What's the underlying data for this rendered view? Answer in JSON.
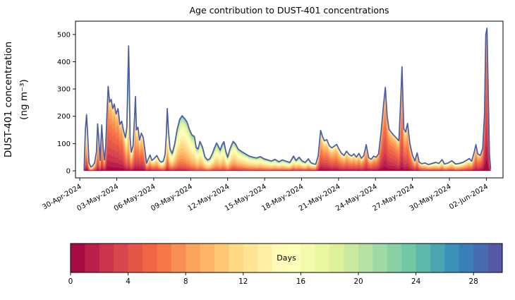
{
  "figure": {
    "title": "Age contribution to DUST-401 concentrations"
  },
  "chart_data": {
    "type": "area",
    "subtype": "stacked-area-by-age",
    "title": "Age contribution to DUST-401 concentrations",
    "xlabel": "",
    "ylabel_line1": "DUST-401 concentration",
    "ylabel_line2": "(ng m⁻³)",
    "x_unit": "days since 30-Apr-2024",
    "x_tick_labels": [
      "30-Apr-2024",
      "03-May-2024",
      "06-May-2024",
      "09-May-2024",
      "12-May-2024",
      "15-May-2024",
      "18-May-2024",
      "21-May-2024",
      "24-May-2024",
      "27-May-2024",
      "30-May-2024",
      "02-Jun-2024"
    ],
    "x_tick_days": [
      0,
      3,
      6,
      9,
      12,
      15,
      18,
      21,
      24,
      27,
      30,
      33
    ],
    "y_ticks": [
      0,
      100,
      200,
      300,
      400,
      500
    ],
    "xlim_days": [
      -0.35,
      34.35
    ],
    "ylim": [
      -26,
      549
    ],
    "grid": false,
    "legend": "none (colorbar encodes age)",
    "age_bands": 30,
    "stack_order": "youngest age (0 days) at bottom, oldest (30 days) at top",
    "envelope_color": "#4b5ba8",
    "colormap_name": "Spectral",
    "colormap_hex": [
      "#9e0142",
      "#d53e4f",
      "#f46d43",
      "#fdae61",
      "#fee08b",
      "#ffffbf",
      "#e6f598",
      "#abdda4",
      "#66c2a5",
      "#3288bd",
      "#5e4fa2"
    ],
    "colorbar": {
      "label": "Days",
      "ticks": [
        0,
        4,
        8,
        12,
        16,
        20,
        24,
        28
      ],
      "range": [
        0,
        30
      ],
      "orientation": "horizontal",
      "discrete_segments": 30
    },
    "points_format": [
      "t_days_since_30Apr2024",
      "total_concentration_ng_m3",
      "mean_age_days",
      "age_spread_days"
    ],
    "points": [
      [
        0.35,
        2,
        12,
        7
      ],
      [
        0.45,
        150,
        10,
        7
      ],
      [
        0.55,
        206,
        10,
        7
      ],
      [
        0.65,
        120,
        10,
        7
      ],
      [
        0.75,
        30,
        10,
        6
      ],
      [
        0.9,
        14,
        10,
        6
      ],
      [
        1.05,
        18,
        9,
        6
      ],
      [
        1.2,
        30,
        9,
        6
      ],
      [
        1.35,
        70,
        8,
        5
      ],
      [
        1.45,
        172,
        8,
        5
      ],
      [
        1.55,
        110,
        8,
        5
      ],
      [
        1.65,
        38,
        8,
        5
      ],
      [
        1.78,
        168,
        7,
        5
      ],
      [
        1.9,
        80,
        7,
        5
      ],
      [
        2.0,
        40,
        6,
        4.5
      ],
      [
        2.1,
        90,
        5.5,
        4
      ],
      [
        2.2,
        200,
        5,
        4
      ],
      [
        2.3,
        310,
        5,
        4
      ],
      [
        2.42,
        252,
        5,
        4
      ],
      [
        2.55,
        262,
        5,
        4
      ],
      [
        2.68,
        228,
        5,
        4
      ],
      [
        2.8,
        245,
        5,
        4
      ],
      [
        2.95,
        208,
        5,
        4
      ],
      [
        3.1,
        228,
        5,
        4
      ],
      [
        3.25,
        170,
        5,
        4
      ],
      [
        3.4,
        182,
        5,
        4
      ],
      [
        3.55,
        148,
        5.5,
        4.5
      ],
      [
        3.7,
        122,
        7,
        5.5
      ],
      [
        3.82,
        160,
        11,
        7
      ],
      [
        3.9,
        330,
        14,
        8
      ],
      [
        3.96,
        458,
        16,
        9
      ],
      [
        4.02,
        330,
        14,
        8
      ],
      [
        4.08,
        120,
        10,
        7
      ],
      [
        4.18,
        68,
        8,
        6
      ],
      [
        4.32,
        92,
        7,
        5
      ],
      [
        4.45,
        200,
        8,
        6
      ],
      [
        4.52,
        272,
        8,
        6
      ],
      [
        4.6,
        150,
        7,
        5
      ],
      [
        4.72,
        160,
        6,
        5
      ],
      [
        4.85,
        112,
        6,
        5
      ],
      [
        5.0,
        138,
        6,
        5
      ],
      [
        5.15,
        122,
        6,
        5
      ],
      [
        5.3,
        70,
        6.5,
        5
      ],
      [
        5.42,
        28,
        7,
        5.5
      ],
      [
        5.55,
        42,
        8,
        6
      ],
      [
        5.7,
        58,
        8,
        6
      ],
      [
        5.85,
        38,
        8,
        6
      ],
      [
        6.05,
        46,
        9,
        6
      ],
      [
        6.25,
        56,
        9,
        6
      ],
      [
        6.45,
        38,
        9.5,
        6
      ],
      [
        6.6,
        32,
        10,
        6
      ],
      [
        6.78,
        36,
        10.5,
        6.5
      ],
      [
        6.92,
        60,
        11.5,
        7
      ],
      [
        7.02,
        130,
        12,
        7
      ],
      [
        7.1,
        228,
        12,
        7
      ],
      [
        7.2,
        145,
        12,
        7
      ],
      [
        7.32,
        82,
        12,
        7
      ],
      [
        7.5,
        64,
        12,
        7
      ],
      [
        7.7,
        98,
        12,
        6.5
      ],
      [
        7.9,
        152,
        12,
        6
      ],
      [
        8.1,
        188,
        12,
        6
      ],
      [
        8.3,
        202,
        12,
        5.5
      ],
      [
        8.5,
        192,
        12,
        5.5
      ],
      [
        8.7,
        180,
        12.5,
        5.5
      ],
      [
        8.9,
        152,
        12.5,
        5.5
      ],
      [
        9.1,
        132,
        13,
        5.5
      ],
      [
        9.3,
        126,
        13,
        5.5
      ],
      [
        9.45,
        86,
        13,
        5.5
      ],
      [
        9.6,
        80,
        13,
        5.5
      ],
      [
        9.75,
        108,
        13,
        5.5
      ],
      [
        9.95,
        88,
        13,
        5.5
      ],
      [
        10.15,
        52,
        13,
        6
      ],
      [
        10.35,
        40,
        13,
        6
      ],
      [
        10.55,
        44,
        13,
        6
      ],
      [
        10.75,
        62,
        13,
        6
      ],
      [
        10.95,
        86,
        13,
        6
      ],
      [
        11.1,
        102,
        13,
        6
      ],
      [
        11.25,
        90,
        13,
        6
      ],
      [
        11.4,
        76,
        13,
        6
      ],
      [
        11.55,
        96,
        13,
        6
      ],
      [
        11.7,
        107,
        13,
        6
      ],
      [
        11.85,
        72,
        13,
        6
      ],
      [
        12.0,
        50,
        13,
        6
      ],
      [
        12.2,
        82,
        12.5,
        6
      ],
      [
        12.45,
        108,
        12,
        6
      ],
      [
        12.65,
        98,
        12,
        6
      ],
      [
        12.85,
        80,
        12,
        6
      ],
      [
        13.15,
        70,
        12,
        6
      ],
      [
        13.45,
        62,
        12,
        6
      ],
      [
        13.75,
        54,
        12,
        6
      ],
      [
        14.05,
        50,
        12,
        6
      ],
      [
        14.35,
        47,
        12,
        6
      ],
      [
        14.65,
        52,
        12,
        6
      ],
      [
        14.95,
        44,
        12,
        6
      ],
      [
        15.25,
        40,
        12,
        6
      ],
      [
        15.55,
        36,
        12,
        6
      ],
      [
        15.85,
        42,
        12,
        6.5
      ],
      [
        16.15,
        33,
        12,
        6.5
      ],
      [
        16.45,
        40,
        12,
        6.5
      ],
      [
        16.75,
        35,
        12,
        6.5
      ],
      [
        17.05,
        31,
        12,
        7
      ],
      [
        17.35,
        54,
        12,
        7
      ],
      [
        17.55,
        38,
        12,
        7
      ],
      [
        17.8,
        50,
        12,
        7
      ],
      [
        18.05,
        36,
        11.5,
        7
      ],
      [
        18.3,
        31,
        11.5,
        7
      ],
      [
        18.55,
        44,
        11,
        7
      ],
      [
        18.75,
        30,
        10.5,
        7
      ],
      [
        18.95,
        26,
        10,
        6.5
      ],
      [
        19.15,
        24,
        9,
        6
      ],
      [
        19.35,
        55,
        7.5,
        5.5
      ],
      [
        19.55,
        148,
        6,
        5
      ],
      [
        19.7,
        125,
        6,
        5
      ],
      [
        19.85,
        110,
        6,
        5
      ],
      [
        20.05,
        114,
        6,
        5
      ],
      [
        20.25,
        92,
        6,
        5
      ],
      [
        20.45,
        84,
        6.5,
        5
      ],
      [
        20.65,
        90,
        6.5,
        5
      ],
      [
        20.85,
        97,
        6.5,
        5
      ],
      [
        21.05,
        78,
        7,
        5
      ],
      [
        21.25,
        64,
        7,
        5
      ],
      [
        21.45,
        56,
        7,
        5
      ],
      [
        21.65,
        72,
        7,
        5
      ],
      [
        21.85,
        60,
        7,
        5
      ],
      [
        22.05,
        54,
        7,
        5
      ],
      [
        22.25,
        62,
        7,
        5
      ],
      [
        22.45,
        50,
        7,
        5
      ],
      [
        22.65,
        64,
        7,
        5
      ],
      [
        22.85,
        46,
        7,
        5
      ],
      [
        23.05,
        56,
        6.5,
        4.5
      ],
      [
        23.25,
        96,
        6,
        4.5
      ],
      [
        23.45,
        48,
        6,
        4.5
      ],
      [
        23.65,
        42,
        6,
        4.5
      ],
      [
        23.85,
        54,
        6,
        4.5
      ],
      [
        24.05,
        50,
        5.5,
        4
      ],
      [
        24.25,
        62,
        5,
        4
      ],
      [
        24.45,
        140,
        5,
        4
      ],
      [
        24.65,
        240,
        5,
        4
      ],
      [
        24.8,
        306,
        5,
        4
      ],
      [
        24.95,
        200,
        5,
        4
      ],
      [
        25.1,
        152,
        5,
        4
      ],
      [
        25.3,
        140,
        5,
        4
      ],
      [
        25.5,
        130,
        5,
        4
      ],
      [
        25.7,
        120,
        5.5,
        4
      ],
      [
        25.9,
        110,
        6,
        4
      ],
      [
        26.05,
        260,
        6,
        4
      ],
      [
        26.15,
        382,
        6,
        4
      ],
      [
        26.3,
        155,
        6,
        4
      ],
      [
        26.45,
        142,
        6,
        4
      ],
      [
        26.6,
        174,
        6,
        4
      ],
      [
        26.8,
        98,
        6,
        4
      ],
      [
        27.0,
        58,
        6.5,
        4.5
      ],
      [
        27.2,
        36,
        7,
        5
      ],
      [
        27.38,
        66,
        7,
        5
      ],
      [
        27.55,
        32,
        7.5,
        5
      ],
      [
        27.75,
        26,
        8,
        5.5
      ],
      [
        28.0,
        29,
        9,
        6
      ],
      [
        28.3,
        23,
        9,
        6
      ],
      [
        28.6,
        27,
        9.5,
        6
      ],
      [
        28.9,
        31,
        10,
        6
      ],
      [
        29.15,
        27,
        10,
        6
      ],
      [
        29.4,
        41,
        10,
        6
      ],
      [
        29.6,
        25,
        10,
        6
      ],
      [
        29.9,
        29,
        10,
        6
      ],
      [
        30.2,
        37,
        10,
        6
      ],
      [
        30.5,
        25,
        10,
        6
      ],
      [
        30.8,
        27,
        10,
        6
      ],
      [
        31.1,
        31,
        9.5,
        6
      ],
      [
        31.4,
        39,
        9,
        6
      ],
      [
        31.6,
        45,
        9,
        6
      ],
      [
        31.8,
        35,
        8,
        5.5
      ],
      [
        32.0,
        66,
        7,
        5
      ],
      [
        32.15,
        96,
        6,
        4.5
      ],
      [
        32.3,
        62,
        6,
        4.5
      ],
      [
        32.5,
        56,
        5,
        4
      ],
      [
        32.7,
        82,
        4.5,
        4
      ],
      [
        32.85,
        210,
        4,
        3.5
      ],
      [
        32.95,
        500,
        4,
        3.5
      ],
      [
        33.05,
        523,
        4,
        3.5
      ],
      [
        33.15,
        300,
        4.5,
        3.5
      ],
      [
        33.25,
        60,
        5,
        4
      ],
      [
        33.35,
        8,
        6,
        5
      ]
    ]
  }
}
